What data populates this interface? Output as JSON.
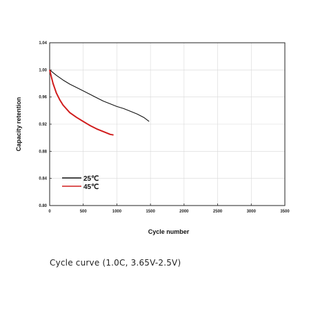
{
  "chart_data": {
    "type": "line",
    "title": "",
    "xlabel": "Cycle number",
    "ylabel": "Capacity retention",
    "xlim": [
      0,
      3500
    ],
    "ylim": [
      0.8,
      1.04
    ],
    "xticks": [
      0,
      500,
      1000,
      1500,
      2000,
      2500,
      3000,
      3500
    ],
    "yticks": [
      0.8,
      0.84,
      0.88,
      0.92,
      0.96,
      1.0,
      1.04
    ],
    "grid": true,
    "legend": "bottom-left",
    "series": [
      {
        "name": "25℃",
        "color": "#111111",
        "x": [
          0,
          50,
          100,
          200,
          300,
          400,
          500,
          600,
          700,
          800,
          900,
          1000,
          1100,
          1200,
          1300,
          1400,
          1480
        ],
        "y": [
          1.0,
          0.996,
          0.992,
          0.985,
          0.979,
          0.974,
          0.969,
          0.964,
          0.959,
          0.954,
          0.95,
          0.946,
          0.943,
          0.939,
          0.935,
          0.93,
          0.924
        ]
      },
      {
        "name": "45℃",
        "color": "#d01c1c",
        "x": [
          0,
          25,
          50,
          100,
          150,
          200,
          300,
          400,
          500,
          600,
          700,
          800,
          900,
          950
        ],
        "y": [
          1.0,
          0.99,
          0.98,
          0.966,
          0.956,
          0.948,
          0.937,
          0.93,
          0.924,
          0.918,
          0.913,
          0.909,
          0.905,
          0.904
        ]
      }
    ]
  },
  "caption": "Cycle curve  (1.0C, 3.65V-2.5V)"
}
